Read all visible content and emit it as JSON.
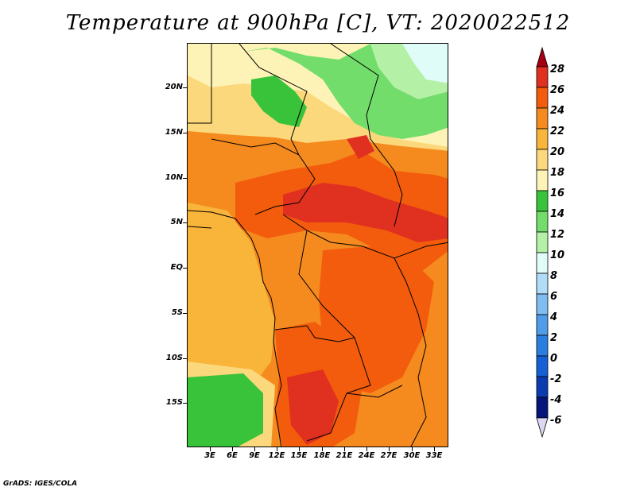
{
  "title": "Temperature at 900hPa [C], VT: 2020022512",
  "credit": "GrADS: IGES/COLA",
  "lat_labels": [
    "20N",
    "15N",
    "10N",
    "5N",
    "EQ",
    "5S",
    "10S",
    "15S"
  ],
  "lon_labels": [
    "3E",
    "6E",
    "9E",
    "12E",
    "15E",
    "18E",
    "21E",
    "24E",
    "27E",
    "30E",
    "33E"
  ],
  "colorbar": {
    "levels": [
      "28",
      "26",
      "24",
      "22",
      "20",
      "18",
      "16",
      "14",
      "12",
      "10",
      "8",
      "6",
      "4",
      "2",
      "0",
      "-2",
      "-4",
      "-6"
    ],
    "colors": [
      "#a40012",
      "#e0301f",
      "#f25c0c",
      "#f58a1f",
      "#f9b43a",
      "#fcd87c",
      "#fef3b6",
      "#38c33a",
      "#73dd6b",
      "#b4f0a6",
      "#e0fcf8",
      "#b0dcf8",
      "#7fbcf2",
      "#4f9ce8",
      "#2a7ee0",
      "#1560d4",
      "#0a3cb0",
      "#05157a",
      "#dcd8f2"
    ]
  }
}
